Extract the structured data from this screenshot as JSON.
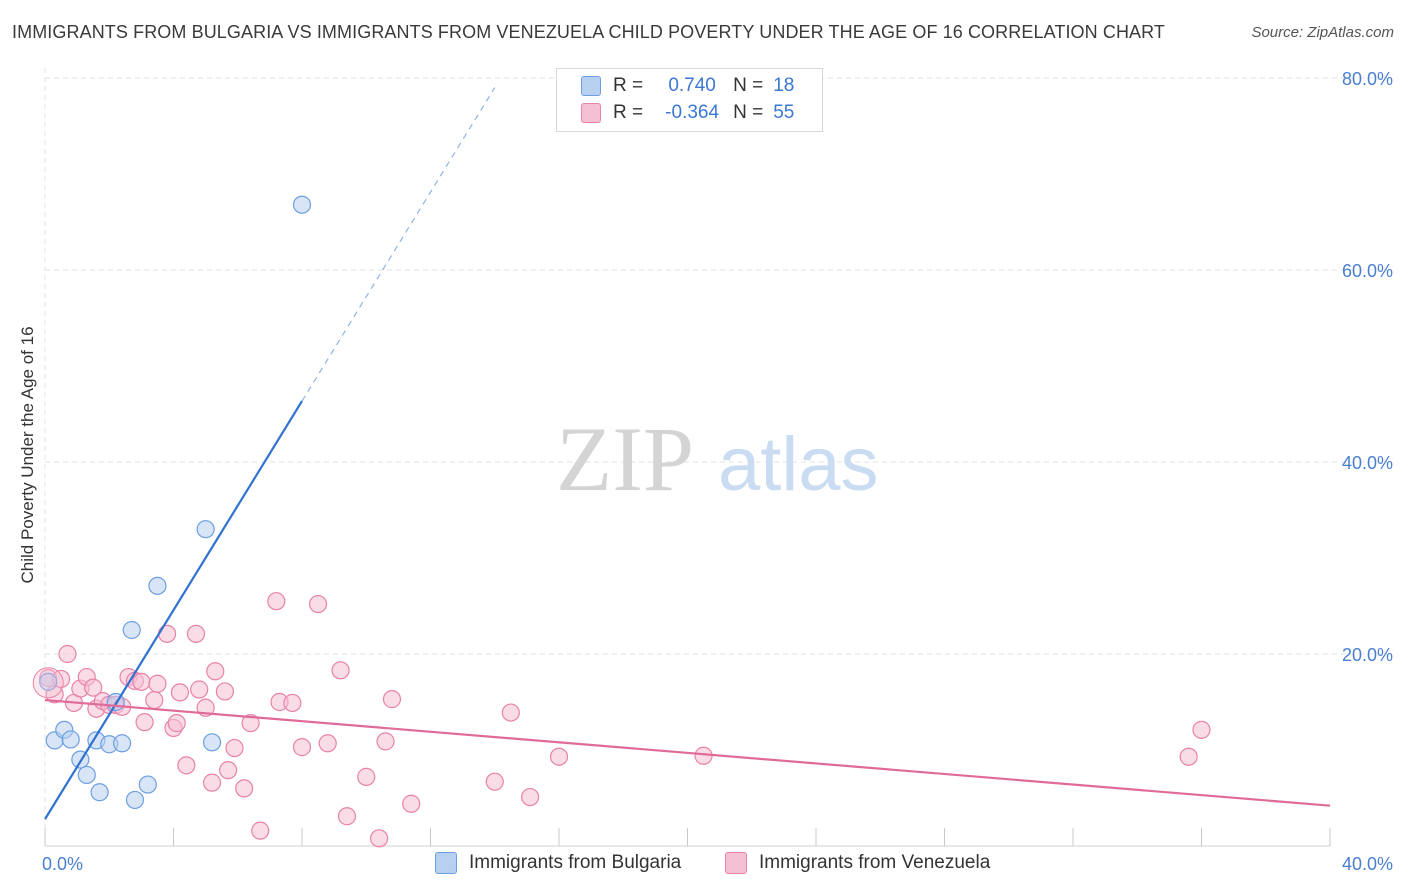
{
  "header": {
    "title": "IMMIGRANTS FROM BULGARIA VS IMMIGRANTS FROM VENEZUELA CHILD POVERTY UNDER THE AGE OF 16 CORRELATION CHART",
    "source": "Source: ZipAtlas.com"
  },
  "watermark": {
    "zip": "ZIP",
    "atlas": "atlas"
  },
  "legend": {
    "rows": [
      {
        "r_label": "R =",
        "r_value": "0.740",
        "n_label": "N =",
        "n_value": "18"
      },
      {
        "r_label": "R =",
        "r_value": "-0.364",
        "n_label": "N =",
        "n_value": "55"
      }
    ]
  },
  "chart_data": {
    "type": "scatter",
    "title": "IMMIGRANTS FROM BULGARIA VS IMMIGRANTS FROM VENEZUELA CHILD POVERTY UNDER THE AGE OF 16 CORRELATION CHART",
    "xlabel": "",
    "ylabel": "Child Poverty Under the Age of 16",
    "xlim": [
      0,
      40
    ],
    "ylim": [
      0,
      80
    ],
    "x_tick_labels": [
      "0.0%",
      "40.0%"
    ],
    "y_ticks": [
      20,
      40,
      60,
      80
    ],
    "y_tick_labels": [
      "20.0%",
      "40.0%",
      "60.0%",
      "80.0%"
    ],
    "grid": true,
    "legend_position": "top-center",
    "series": [
      {
        "name": "Immigrants from Bulgaria",
        "color": "#6d9fe0",
        "fill": "#b7d0f0",
        "r": 0.74,
        "n": 18,
        "points": [
          [
            0.1,
            17.1
          ],
          [
            0.3,
            11.0
          ],
          [
            0.6,
            12.1
          ],
          [
            0.8,
            11.1
          ],
          [
            1.1,
            9.0
          ],
          [
            1.3,
            7.4
          ],
          [
            1.6,
            11.0
          ],
          [
            1.7,
            5.6
          ],
          [
            2.0,
            10.6
          ],
          [
            2.2,
            15.0
          ],
          [
            2.4,
            10.7
          ],
          [
            2.7,
            22.5
          ],
          [
            2.8,
            4.8
          ],
          [
            3.2,
            6.4
          ],
          [
            3.5,
            27.1
          ],
          [
            5.0,
            33.0
          ],
          [
            5.2,
            10.8
          ],
          [
            8.0,
            66.8
          ]
        ],
        "trend": {
          "x_start": 0.0,
          "y_start": 2.8,
          "x_solid_end": 8.0,
          "x_end": 14.0,
          "y_end": 79.0
        }
      },
      {
        "name": "Immigrants from Venezuela",
        "color": "#e882a8",
        "fill": "#f5c0d3",
        "r": -0.364,
        "n": 55,
        "points": [
          [
            0.1,
            17.5
          ],
          [
            0.3,
            15.8
          ],
          [
            0.5,
            17.4
          ],
          [
            0.7,
            20.0
          ],
          [
            0.9,
            14.9
          ],
          [
            1.1,
            16.4
          ],
          [
            1.3,
            17.6
          ],
          [
            1.5,
            16.5
          ],
          [
            1.6,
            14.3
          ],
          [
            1.8,
            15.1
          ],
          [
            2.0,
            14.7
          ],
          [
            2.2,
            14.7
          ],
          [
            2.4,
            14.5
          ],
          [
            2.6,
            17.6
          ],
          [
            2.8,
            17.2
          ],
          [
            3.0,
            17.1
          ],
          [
            3.1,
            12.9
          ],
          [
            3.4,
            15.2
          ],
          [
            3.5,
            16.9
          ],
          [
            3.8,
            22.1
          ],
          [
            4.0,
            12.3
          ],
          [
            4.1,
            12.8
          ],
          [
            4.2,
            16.0
          ],
          [
            4.4,
            8.4
          ],
          [
            4.7,
            22.1
          ],
          [
            4.8,
            16.3
          ],
          [
            5.0,
            14.4
          ],
          [
            5.2,
            6.6
          ],
          [
            5.3,
            18.2
          ],
          [
            5.6,
            16.1
          ],
          [
            5.7,
            7.9
          ],
          [
            5.9,
            10.2
          ],
          [
            6.2,
            6.0
          ],
          [
            6.4,
            12.8
          ],
          [
            6.7,
            1.6
          ],
          [
            7.2,
            25.5
          ],
          [
            7.3,
            15.0
          ],
          [
            7.7,
            14.9
          ],
          [
            8.0,
            10.3
          ],
          [
            8.5,
            25.2
          ],
          [
            8.8,
            10.7
          ],
          [
            9.2,
            18.3
          ],
          [
            9.4,
            3.1
          ],
          [
            10.0,
            7.2
          ],
          [
            10.4,
            0.8
          ],
          [
            10.6,
            10.9
          ],
          [
            10.8,
            15.3
          ],
          [
            11.4,
            4.4
          ],
          [
            14.0,
            6.7
          ],
          [
            14.5,
            13.9
          ],
          [
            15.1,
            5.1
          ],
          [
            16.0,
            9.3
          ],
          [
            20.5,
            9.4
          ],
          [
            35.6,
            9.3
          ],
          [
            36.0,
            12.1
          ]
        ],
        "trend": {
          "x_start": 0.0,
          "y_start": 15.2,
          "x_end": 40.0,
          "y_end": 4.2
        }
      }
    ]
  }
}
